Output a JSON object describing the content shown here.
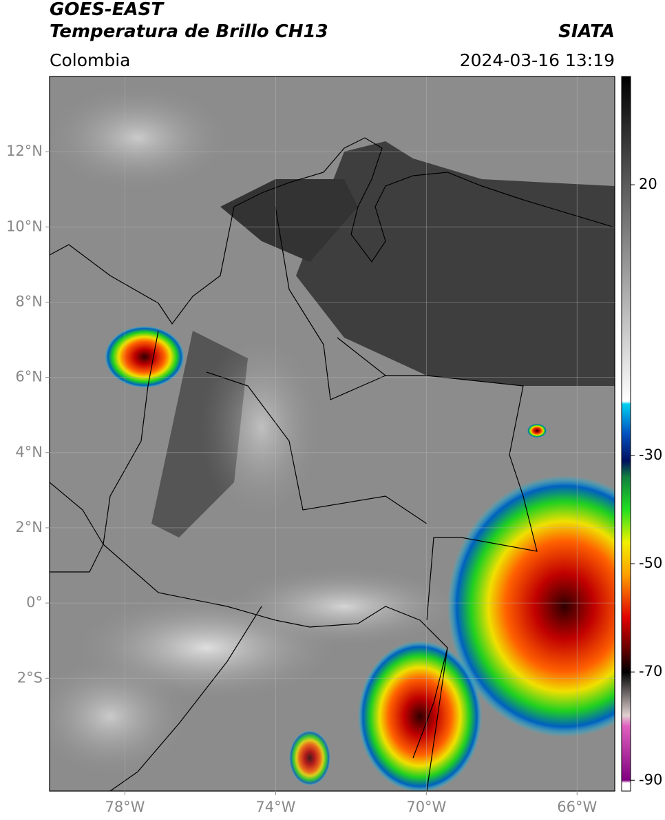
{
  "header": {
    "title": "GOES-EAST",
    "subtitle": "Temperatura de Brillo CH13",
    "source": "SIATA",
    "region": "Colombia",
    "datetime": "2024-03-16 13:19"
  },
  "map": {
    "lonlim": [
      -80,
      -65
    ],
    "latlim": [
      -5,
      14
    ],
    "lonticks": [
      {
        "value": -78,
        "label": "78°W"
      },
      {
        "value": -74,
        "label": "74°W"
      },
      {
        "value": -70,
        "label": "70°W"
      },
      {
        "value": -66,
        "label": "66°W"
      }
    ],
    "latticks": [
      {
        "value": 12,
        "label": "12°N"
      },
      {
        "value": 10,
        "label": "10°N"
      },
      {
        "value": 8,
        "label": "8°N"
      },
      {
        "value": 6,
        "label": "6°N"
      },
      {
        "value": 4,
        "label": "4°N"
      },
      {
        "value": 2,
        "label": "2°N"
      },
      {
        "value": 0,
        "label": "0°"
      },
      {
        "value": -2,
        "label": "2°S"
      }
    ],
    "grid": true,
    "colorbar": {
      "lim": [
        -92,
        40
      ],
      "ticks": [
        20,
        -30,
        -50,
        -70,
        -90
      ],
      "colormap": [
        {
          "value": 40,
          "color": "#000000"
        },
        {
          "value": 20,
          "color": "#5a5a5a"
        },
        {
          "value": -20,
          "color": "#ffffff"
        },
        {
          "value": -20.5,
          "color": "#00d0f0"
        },
        {
          "value": -26,
          "color": "#0050c0"
        },
        {
          "value": -31,
          "color": "#001060"
        },
        {
          "value": -34,
          "color": "#108040"
        },
        {
          "value": -40,
          "color": "#20e020"
        },
        {
          "value": -46,
          "color": "#f0f000"
        },
        {
          "value": -52,
          "color": "#ffa000"
        },
        {
          "value": -60,
          "color": "#e00000"
        },
        {
          "value": -66,
          "color": "#600000"
        },
        {
          "value": -70,
          "color": "#000000"
        },
        {
          "value": -78,
          "color": "#e0d0d0"
        },
        {
          "value": -80,
          "color": "#e060c0"
        },
        {
          "value": -90,
          "color": "#800080"
        },
        {
          "value": -90.5,
          "color": "#ffffff"
        },
        {
          "value": -92,
          "color": "#ffffff"
        }
      ]
    }
  }
}
